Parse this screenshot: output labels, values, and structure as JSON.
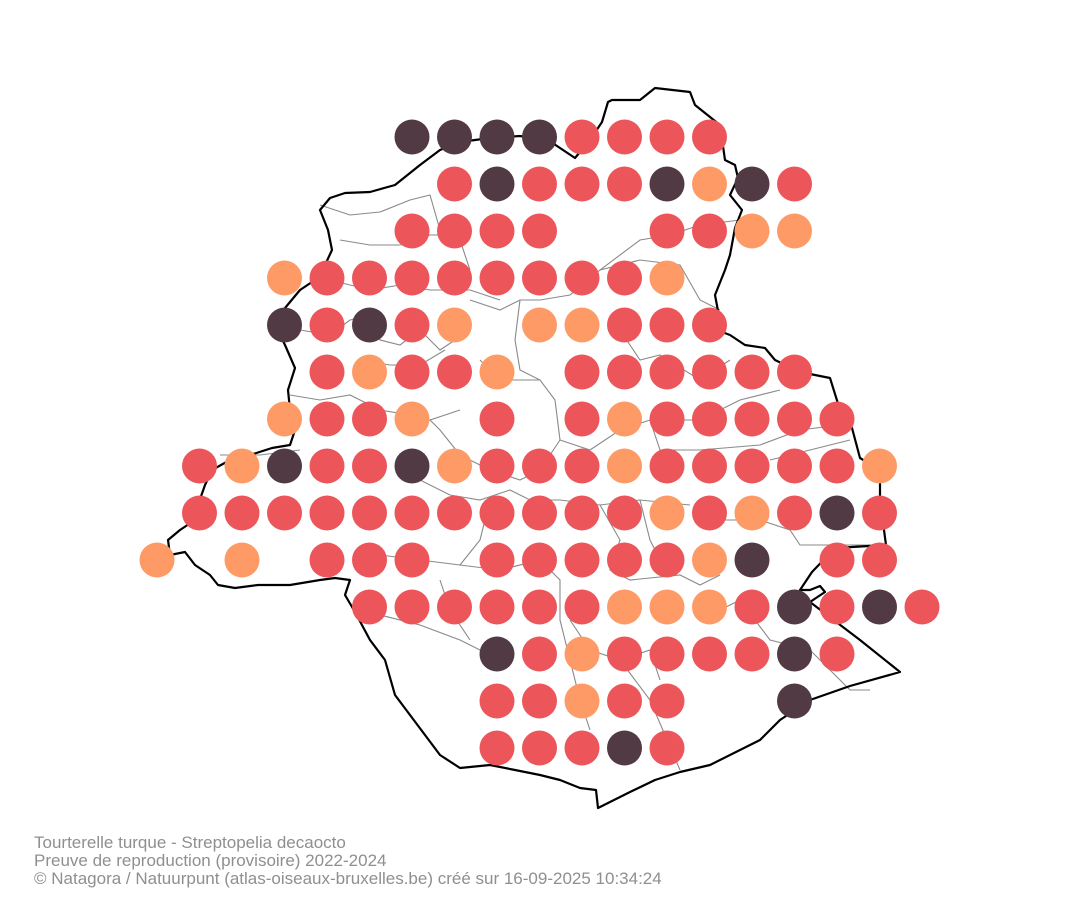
{
  "map": {
    "grid": {
      "rows": [
        "...DDDDRRRR..",
        "....RDRRRDODR",
        "...RRRR..RROO",
        "..ORRRRRRRRO.",
        "..DRDRO.OORRR",
        "...RORRO.RRRRRR",
        "..ORRO.R.RORRRRR",
        ".RODRRDORRRORRRRRO",
        ".RRRRRRRRRRRORORDR",
        "O.O.RRR.RRRRROD.RR",
        "....RRRRRROOORDRDR",
        ".......DRORRRRDR",
        ".......RRORR..D",
        ".......RRRDR"
      ],
      "start_col_offsets": [
        0,
        0,
        0,
        0,
        0,
        0,
        0,
        0,
        0,
        0,
        0,
        0,
        0,
        0
      ],
      "legend_codes": {
        "D": "certain",
        "R": "probable",
        "O": "possible"
      }
    },
    "colors": {
      "certain": "#513a43",
      "probable": "#ec5559",
      "possible": "#fd9a66",
      "border": "#000000",
      "municipality_lines": "#8a8a8a"
    }
  },
  "caption": {
    "title": "Tourterelle turque - Streptopelia decaocto",
    "subtitle": "Preuve de reproduction (provisoire) 2022-2024",
    "credit": "© Natagora / Natuurpunt (atlas-oiseaux-bruxelles.be) créé sur 16-09-2025 10:34:24"
  }
}
